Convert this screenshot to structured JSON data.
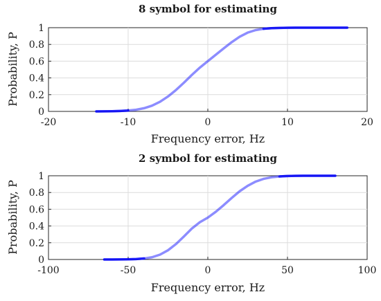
{
  "chart_data": [
    {
      "type": "line",
      "title": "8 symbol for estimating",
      "xlabel": "Frequency error, Hz",
      "ylabel": "Probability, P",
      "xlim": [
        -20,
        20
      ],
      "ylim": [
        0,
        1
      ],
      "xticks": [
        -20,
        -10,
        0,
        10,
        20
      ],
      "yticks": [
        0,
        0.2,
        0.4,
        0.6,
        0.8,
        1
      ],
      "grid": true,
      "series_color": "#0000ff",
      "curve": {
        "x": [
          -14,
          -13,
          -12,
          -11,
          -10,
          -9,
          -8,
          -7,
          -6,
          -5,
          -4,
          -3,
          -2,
          -1,
          0,
          1,
          2,
          3,
          4,
          5,
          6,
          7,
          8,
          9,
          10,
          11,
          12,
          13,
          14,
          15,
          16,
          17,
          17.5
        ],
        "y": [
          0.0,
          0.001,
          0.002,
          0.005,
          0.01,
          0.02,
          0.038,
          0.069,
          0.115,
          0.178,
          0.255,
          0.343,
          0.436,
          0.523,
          0.6,
          0.677,
          0.753,
          0.827,
          0.892,
          0.941,
          0.971,
          0.987,
          0.994,
          0.997,
          0.999,
          1.0,
          1.0,
          1.0,
          1.0,
          1.0,
          1.0,
          1.0,
          1.0
        ]
      }
    },
    {
      "type": "line",
      "title": "2 symbol for estimating",
      "xlabel": "Frequency error, Hz",
      "ylabel": "Probability, P",
      "xlim": [
        -100,
        100
      ],
      "ylim": [
        0,
        1
      ],
      "xticks": [
        -100,
        -50,
        0,
        50,
        100
      ],
      "yticks": [
        0,
        0.2,
        0.4,
        0.6,
        0.8,
        1
      ],
      "grid": true,
      "series_color": "#0000ff",
      "curve": {
        "x": [
          -65,
          -60,
          -55,
          -50,
          -45,
          -40,
          -35,
          -30,
          -25,
          -20,
          -15,
          -10,
          -5,
          0,
          5,
          10,
          15,
          20,
          25,
          30,
          35,
          40,
          45,
          50,
          55,
          60,
          65,
          70,
          75,
          80
        ],
        "y": [
          0.0,
          0.0,
          0.001,
          0.002,
          0.005,
          0.012,
          0.027,
          0.058,
          0.11,
          0.184,
          0.275,
          0.37,
          0.445,
          0.5,
          0.57,
          0.65,
          0.735,
          0.815,
          0.88,
          0.93,
          0.963,
          0.982,
          0.992,
          0.997,
          0.999,
          1.0,
          1.0,
          1.0,
          1.0,
          1.0
        ]
      }
    }
  ]
}
